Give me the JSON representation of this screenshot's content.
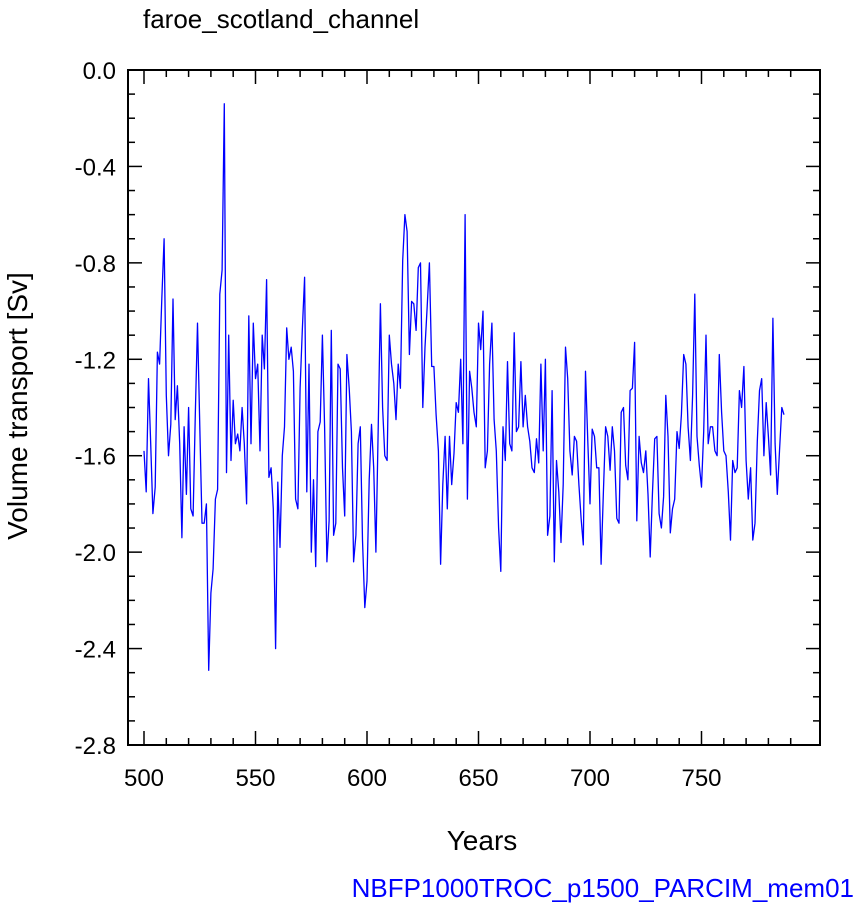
{
  "chart_data": {
    "type": "line",
    "title": "faroe_scotland_channel",
    "xlabel": "Years",
    "ylabel": "Volume transport [Sv]",
    "footer": "NBFP1000TROC_p1500_PARCIM_mem01",
    "xlim": [
      500,
      799
    ],
    "ylim": [
      -2.8,
      0.0
    ],
    "x_major_ticks": [
      500,
      550,
      600,
      650,
      700,
      750
    ],
    "x_tick_labels": [
      "500",
      "550",
      "600",
      "650",
      "700",
      "750"
    ],
    "y_major_ticks": [
      0.0,
      -0.4,
      -0.8,
      -1.2,
      -1.6,
      -2.0,
      -2.4,
      -2.8
    ],
    "y_tick_labels": [
      "0.0",
      "-0.4",
      "-0.8",
      "-1.2",
      "-1.6",
      "-2.0",
      "-2.4",
      "-2.8"
    ],
    "grid": false,
    "colors": {
      "series": "#0000ff",
      "footer": "#0000ff",
      "axis": "#000000"
    },
    "series": [
      {
        "x_start": 500,
        "x_step": 1,
        "values": [
          -1.58,
          -1.75,
          -1.28,
          -1.55,
          -1.84,
          -1.73,
          -1.17,
          -1.22,
          -0.95,
          -0.7,
          -1.35,
          -1.6,
          -1.47,
          -0.95,
          -1.45,
          -1.31,
          -1.55,
          -1.94,
          -1.48,
          -1.76,
          -1.4,
          -1.82,
          -1.85,
          -1.43,
          -1.05,
          -1.48,
          -1.88,
          -1.88,
          -1.8,
          -2.49,
          -2.17,
          -2.07,
          -1.78,
          -1.74,
          -0.93,
          -0.83,
          -0.14,
          -1.67,
          -1.1,
          -1.62,
          -1.37,
          -1.55,
          -1.51,
          -1.58,
          -1.4,
          -1.55,
          -1.8,
          -1.02,
          -1.55,
          -1.05,
          -1.28,
          -1.22,
          -1.58,
          -1.1,
          -1.24,
          -0.87,
          -1.69,
          -1.65,
          -1.82,
          -2.4,
          -1.71,
          -1.98,
          -1.6,
          -1.48,
          -1.07,
          -1.2,
          -1.15,
          -1.25,
          -1.78,
          -1.82,
          -1.32,
          -1.08,
          -0.86,
          -1.75,
          -1.22,
          -2.0,
          -1.7,
          -2.06,
          -1.5,
          -1.46,
          -1.1,
          -1.48,
          -2.04,
          -1.87,
          -1.08,
          -1.93,
          -1.88,
          -1.22,
          -1.24,
          -1.65,
          -1.85,
          -1.18,
          -1.32,
          -1.5,
          -2.04,
          -1.93,
          -1.55,
          -1.48,
          -1.95,
          -2.23,
          -2.12,
          -1.7,
          -1.47,
          -1.65,
          -2.0,
          -1.51,
          -0.97,
          -1.4,
          -1.6,
          -1.62,
          -1.1,
          -1.22,
          -1.3,
          -1.45,
          -1.22,
          -1.32,
          -0.79,
          -0.6,
          -0.67,
          -1.18,
          -0.96,
          -0.97,
          -1.08,
          -0.82,
          -0.8,
          -1.4,
          -1.15,
          -0.98,
          -0.8,
          -1.23,
          -1.23,
          -1.43,
          -1.58,
          -2.05,
          -1.72,
          -1.52,
          -1.82,
          -1.52,
          -1.72,
          -1.59,
          -1.38,
          -1.42,
          -1.2,
          -1.55,
          -0.6,
          -1.78,
          -1.25,
          -1.32,
          -1.42,
          -1.48,
          -1.05,
          -1.16,
          -1.0,
          -1.65,
          -1.58,
          -1.22,
          -1.05,
          -1.45,
          -1.58,
          -1.9,
          -2.08,
          -1.48,
          -1.62,
          -1.21,
          -1.55,
          -1.58,
          -1.09,
          -1.5,
          -1.48,
          -1.21,
          -1.48,
          -1.35,
          -1.48,
          -1.54,
          -1.65,
          -1.67,
          -1.53,
          -1.63,
          -1.22,
          -1.58,
          -1.2,
          -1.93,
          -1.85,
          -1.33,
          -2.04,
          -1.62,
          -1.75,
          -1.96,
          -1.72,
          -1.15,
          -1.28,
          -1.58,
          -1.68,
          -1.52,
          -1.54,
          -1.72,
          -1.86,
          -1.97,
          -1.25,
          -1.54,
          -1.8,
          -1.49,
          -1.52,
          -1.65,
          -1.65,
          -2.05,
          -1.75,
          -1.48,
          -1.52,
          -1.66,
          -1.48,
          -1.58,
          -1.86,
          -1.88,
          -1.42,
          -1.4,
          -1.64,
          -1.7,
          -1.33,
          -1.32,
          -1.13,
          -1.87,
          -1.52,
          -1.63,
          -1.67,
          -1.58,
          -1.76,
          -2.02,
          -1.76,
          -1.53,
          -1.52,
          -1.84,
          -1.9,
          -1.77,
          -1.35,
          -1.52,
          -1.92,
          -1.82,
          -1.78,
          -1.5,
          -1.57,
          -1.43,
          -1.18,
          -1.22,
          -1.48,
          -1.62,
          -1.35,
          -0.93,
          -1.52,
          -1.64,
          -1.73,
          -1.5,
          -1.1,
          -1.55,
          -1.48,
          -1.48,
          -1.58,
          -1.6,
          -1.18,
          -1.42,
          -1.58,
          -1.6,
          -1.75,
          -1.95,
          -1.62,
          -1.67,
          -1.65,
          -1.33,
          -1.4,
          -1.23,
          -1.62,
          -1.78,
          -1.65,
          -1.95,
          -1.88,
          -1.54,
          -1.33,
          -1.28,
          -1.6,
          -1.38,
          -1.52,
          -1.68,
          -1.03,
          -1.55,
          -1.76,
          -1.58,
          -1.4,
          -1.43
        ]
      }
    ]
  }
}
